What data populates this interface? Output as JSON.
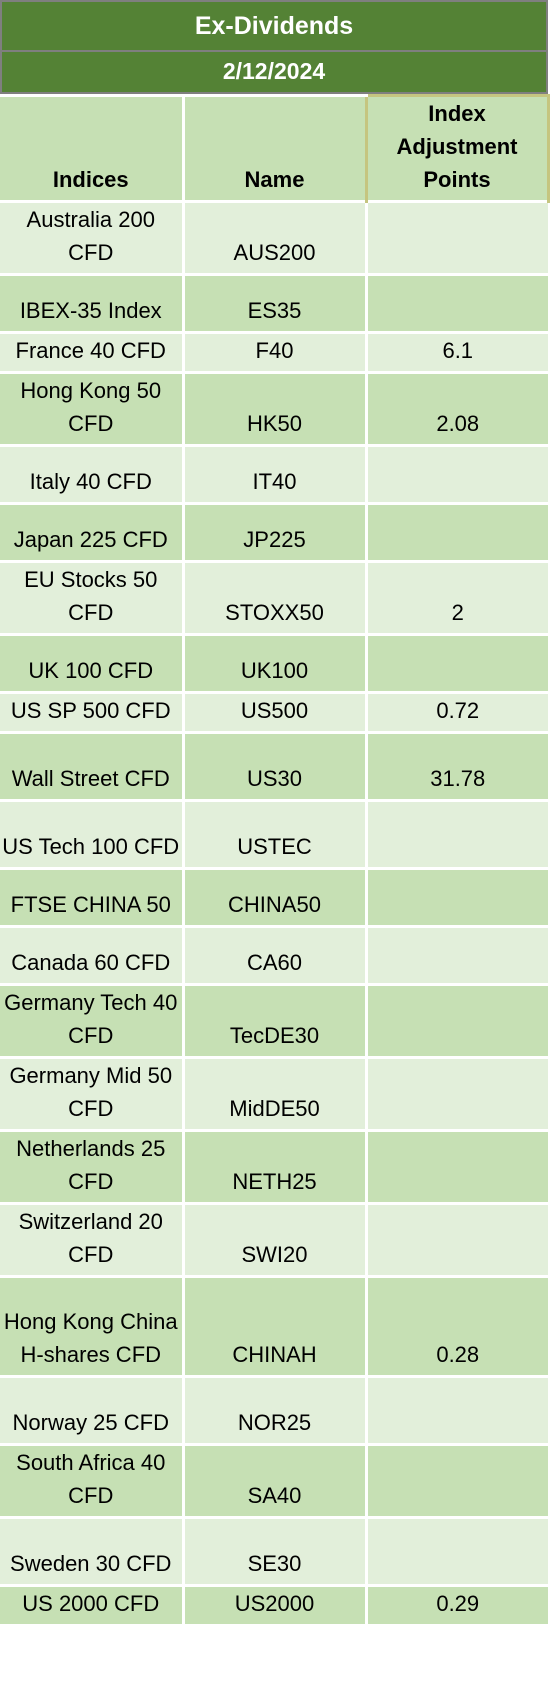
{
  "title": "Ex-Dividends",
  "date": "2/12/2024",
  "columns": {
    "indices": "Indices",
    "name": "Name",
    "adjustment": "Index Adjustment Points"
  },
  "rows": [
    {
      "index": "Australia 200 CFD",
      "symbol": "AUS200",
      "points": ""
    },
    {
      "index": "IBEX-35 Index",
      "symbol": "ES35",
      "points": ""
    },
    {
      "index": "France 40 CFD",
      "symbol": "F40",
      "points": "6.1"
    },
    {
      "index": "Hong Kong 50 CFD",
      "symbol": "HK50",
      "points": "2.08"
    },
    {
      "index": "Italy 40 CFD",
      "symbol": "IT40",
      "points": ""
    },
    {
      "index": "Japan 225 CFD",
      "symbol": "JP225",
      "points": ""
    },
    {
      "index": "EU Stocks 50 CFD",
      "symbol": "STOXX50",
      "points": "2"
    },
    {
      "index": "UK 100 CFD",
      "symbol": "UK100",
      "points": ""
    },
    {
      "index": "US SP 500 CFD",
      "symbol": "US500",
      "points": "0.72"
    },
    {
      "index": "Wall Street CFD",
      "symbol": "US30",
      "points": "31.78"
    },
    {
      "index": "US Tech 100 CFD",
      "symbol": "USTEC",
      "points": ""
    },
    {
      "index": "FTSE CHINA 50",
      "symbol": "CHINA50",
      "points": ""
    },
    {
      "index": "Canada 60 CFD",
      "symbol": "CA60",
      "points": ""
    },
    {
      "index": "Germany Tech 40 CFD",
      "symbol": "TecDE30",
      "points": ""
    },
    {
      "index": "Germany Mid 50 CFD",
      "symbol": "MidDE50",
      "points": ""
    },
    {
      "index": "Netherlands 25 CFD",
      "symbol": "NETH25",
      "points": ""
    },
    {
      "index": "Switzerland 20 CFD",
      "symbol": "SWI20",
      "points": ""
    },
    {
      "index": "Hong Kong China H-shares CFD",
      "symbol": "CHINAH",
      "points": "0.28"
    },
    {
      "index": "Norway 25 CFD",
      "symbol": "NOR25",
      "points": ""
    },
    {
      "index": "South Africa 40 CFD",
      "symbol": "SA40",
      "points": ""
    },
    {
      "index": "Sweden 30 CFD",
      "symbol": "SE30",
      "points": ""
    },
    {
      "index": "US 2000 CFD",
      "symbol": "US2000",
      "points": "0.29"
    }
  ]
}
